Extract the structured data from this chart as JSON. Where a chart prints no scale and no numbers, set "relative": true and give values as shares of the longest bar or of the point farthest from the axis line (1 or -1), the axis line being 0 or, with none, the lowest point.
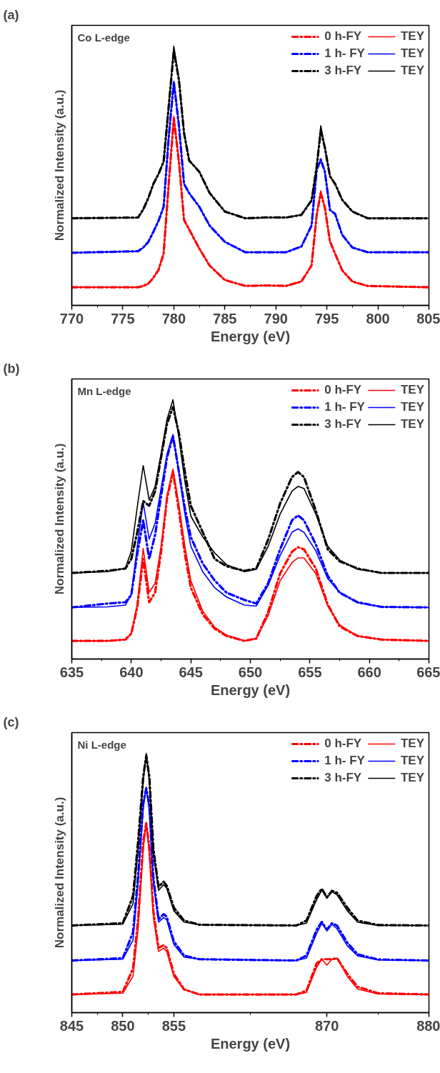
{
  "chart_data": [
    {
      "type": "line",
      "title": "(a)",
      "annotations": [
        "Co L-edge"
      ],
      "xlabel": "Energy (eV)",
      "ylabel": "Normalized Intensity (a.u.)",
      "xlim": [
        770,
        805
      ],
      "xticks": [
        770,
        775,
        780,
        785,
        790,
        795,
        800,
        805
      ],
      "relative": true,
      "tick_labels": "x",
      "legend": "top right",
      "x": [
        770,
        776.5,
        777,
        777.5,
        778,
        778.5,
        779,
        779.5,
        780,
        780.5,
        781,
        781.5,
        782.5,
        783.5,
        785,
        787,
        789,
        791,
        792.5,
        793.5,
        794,
        794.4,
        794.8,
        795.3,
        795.8,
        796.5,
        797.5,
        799,
        805
      ],
      "series": [
        {
          "name": "0 h-FY",
          "color": "#ff0000",
          "line_style": "dashed",
          "values": [
            0.07,
            0.07,
            0.075,
            0.084,
            0.107,
            0.137,
            0.2,
            0.47,
            0.721,
            0.554,
            0.33,
            0.293,
            0.219,
            0.154,
            0.098,
            0.075,
            0.077,
            0.075,
            0.092,
            0.154,
            0.349,
            0.433,
            0.377,
            0.247,
            0.2,
            0.135,
            0.092,
            0.075,
            0.07
          ]
        },
        {
          "name": "TEY",
          "color": "#ff0000",
          "line_style": "solid",
          "values": [
            0.07,
            0.07,
            0.075,
            0.084,
            0.107,
            0.137,
            0.2,
            0.47,
            0.73,
            0.554,
            0.33,
            0.293,
            0.219,
            0.154,
            0.098,
            0.075,
            0.077,
            0.075,
            0.092,
            0.154,
            0.349,
            0.442,
            0.377,
            0.247,
            0.2,
            0.135,
            0.092,
            0.075,
            0.07
          ]
        },
        {
          "name": "1 h- FY",
          "color": "#0000ff",
          "line_style": "dashed",
          "values": [
            0.203,
            0.209,
            0.223,
            0.245,
            0.284,
            0.326,
            0.38,
            0.648,
            0.861,
            0.693,
            0.469,
            0.433,
            0.38,
            0.308,
            0.245,
            0.205,
            0.205,
            0.205,
            0.227,
            0.308,
            0.523,
            0.563,
            0.516,
            0.368,
            0.353,
            0.272,
            0.223,
            0.205,
            0.205
          ]
        },
        {
          "name": "TEY",
          "color": "#0000ff",
          "line_style": "solid",
          "values": [
            0.203,
            0.209,
            0.223,
            0.245,
            0.284,
            0.326,
            0.38,
            0.648,
            0.865,
            0.693,
            0.469,
            0.433,
            0.38,
            0.308,
            0.245,
            0.205,
            0.205,
            0.205,
            0.227,
            0.308,
            0.523,
            0.563,
            0.516,
            0.368,
            0.353,
            0.272,
            0.223,
            0.205,
            0.205
          ]
        },
        {
          "name": "3 h-FY",
          "color": "#000000",
          "line_style": "dashed",
          "values": [
            0.336,
            0.339,
            0.37,
            0.414,
            0.469,
            0.507,
            0.554,
            0.768,
            0.981,
            0.87,
            0.665,
            0.559,
            0.515,
            0.434,
            0.362,
            0.336,
            0.339,
            0.339,
            0.349,
            0.405,
            0.535,
            0.675,
            0.609,
            0.498,
            0.469,
            0.407,
            0.362,
            0.336,
            0.336
          ]
        },
        {
          "name": "TEY",
          "color": "#000000",
          "line_style": "solid",
          "values": [
            0.336,
            0.339,
            0.37,
            0.414,
            0.469,
            0.507,
            0.554,
            0.768,
            1,
            0.87,
            0.665,
            0.559,
            0.515,
            0.434,
            0.362,
            0.336,
            0.339,
            0.339,
            0.349,
            0.405,
            0.535,
            0.693,
            0.609,
            0.498,
            0.469,
            0.407,
            0.362,
            0.336,
            0.336
          ]
        }
      ]
    },
    {
      "type": "line",
      "title": "(b)",
      "annotations": [
        "Mn L-edge"
      ],
      "xlabel": "Energy (eV)",
      "ylabel": "Normalized Intensity (a.u.)",
      "xlim": [
        635,
        665
      ],
      "xticks": [
        635,
        640,
        645,
        650,
        655,
        660,
        665
      ],
      "relative": true,
      "tick_labels": "x",
      "legend": "top right",
      "x": [
        635,
        638,
        639.5,
        640,
        640.5,
        641,
        641.5,
        642,
        642.5,
        643,
        643.5,
        644,
        644.5,
        645,
        646,
        647,
        648,
        649.5,
        650.5,
        651.5,
        652.5,
        653.5,
        654,
        654.5,
        655.5,
        656.5,
        657.5,
        659,
        661,
        665
      ],
      "series": [
        {
          "name": "0 h-FY",
          "color": "#ff0000",
          "line_style": "dashed",
          "values": [
            0.07,
            0.07,
            0.075,
            0.098,
            0.2,
            0.386,
            0.219,
            0.256,
            0.414,
            0.619,
            0.721,
            0.572,
            0.405,
            0.275,
            0.172,
            0.117,
            0.089,
            0.07,
            0.079,
            0.182,
            0.33,
            0.414,
            0.431,
            0.423,
            0.349,
            0.21,
            0.126,
            0.089,
            0.075,
            0.07
          ]
        },
        {
          "name": "TEY",
          "color": "#ff0000",
          "line_style": "solid",
          "values": [
            0.07,
            0.07,
            0.075,
            0.097,
            0.212,
            0.426,
            0.257,
            0.292,
            0.435,
            0.631,
            0.733,
            0.595,
            0.435,
            0.302,
            0.185,
            0.123,
            0.092,
            0.07,
            0.079,
            0.168,
            0.302,
            0.372,
            0.39,
            0.39,
            0.329,
            0.204,
            0.132,
            0.088,
            0.075,
            0.07
          ]
        },
        {
          "name": "1 h- FY",
          "color": "#0000ff",
          "line_style": "dashed",
          "values": [
            0.199,
            0.214,
            0.219,
            0.247,
            0.405,
            0.535,
            0.386,
            0.479,
            0.628,
            0.777,
            0.861,
            0.721,
            0.582,
            0.47,
            0.368,
            0.303,
            0.256,
            0.228,
            0.214,
            0.293,
            0.423,
            0.535,
            0.554,
            0.535,
            0.442,
            0.321,
            0.256,
            0.219,
            0.201,
            0.199
          ]
        },
        {
          "name": "TEY",
          "color": "#0000ff",
          "line_style": "solid",
          "values": [
            0.199,
            0.201,
            0.208,
            0.248,
            0.435,
            0.604,
            0.462,
            0.524,
            0.658,
            0.791,
            0.866,
            0.72,
            0.559,
            0.435,
            0.337,
            0.275,
            0.239,
            0.208,
            0.204,
            0.284,
            0.399,
            0.489,
            0.502,
            0.489,
            0.417,
            0.31,
            0.257,
            0.217,
            0.201,
            0.199
          ]
        },
        {
          "name": "3 h-FY",
          "color": "#000000",
          "line_style": "dashed",
          "values": [
            0.332,
            0.34,
            0.349,
            0.386,
            0.489,
            0.609,
            0.591,
            0.647,
            0.777,
            0.907,
            0.972,
            0.87,
            0.721,
            0.591,
            0.489,
            0.386,
            0.358,
            0.34,
            0.349,
            0.461,
            0.6,
            0.702,
            0.721,
            0.702,
            0.572,
            0.423,
            0.377,
            0.349,
            0.332,
            0.332
          ]
        },
        {
          "name": "TEY",
          "color": "#000000",
          "line_style": "solid",
          "values": [
            0.332,
            0.337,
            0.35,
            0.417,
            0.586,
            0.746,
            0.613,
            0.666,
            0.791,
            0.925,
            1,
            0.853,
            0.684,
            0.551,
            0.471,
            0.409,
            0.364,
            0.337,
            0.346,
            0.435,
            0.559,
            0.648,
            0.666,
            0.658,
            0.559,
            0.435,
            0.382,
            0.346,
            0.332,
            0.332
          ]
        }
      ]
    },
    {
      "type": "line",
      "title": "(c)",
      "annotations": [
        "Ni L-edge"
      ],
      "xlabel": "Energy (eV)",
      "ylabel": "Normalized Intensity (a.u.)",
      "xlim": [
        845,
        880
      ],
      "xticks": [
        845,
        850,
        855,
        870,
        880
      ],
      "relative": true,
      "tick_labels": "x",
      "legend": "top right",
      "x": [
        845,
        850,
        851,
        851.5,
        852,
        852.3,
        852.6,
        853,
        853.5,
        854,
        854.3,
        855,
        856,
        857.5,
        867,
        868,
        869,
        869.5,
        870,
        870.5,
        871,
        872,
        873,
        875,
        880
      ],
      "series": [
        {
          "name": "0 h-FY",
          "color": "#ff0000",
          "line_style": "dashed",
          "values": [
            0.07,
            0.08,
            0.17,
            0.36,
            0.66,
            0.73,
            0.64,
            0.39,
            0.25,
            0.26,
            0.25,
            0.15,
            0.09,
            0.07,
            0.07,
            0.085,
            0.19,
            0.206,
            0.206,
            0.206,
            0.21,
            0.15,
            0.1,
            0.075,
            0.07
          ]
        },
        {
          "name": "TEY",
          "color": "#ff0000",
          "line_style": "solid",
          "values": [
            0.07,
            0.075,
            0.14,
            0.323,
            0.629,
            0.734,
            0.611,
            0.367,
            0.236,
            0.249,
            0.236,
            0.14,
            0.088,
            0.07,
            0.07,
            0.078,
            0.175,
            0.206,
            0.183,
            0.206,
            0.21,
            0.14,
            0.091,
            0.072,
            0.07
          ]
        },
        {
          "name": "1 h- FY",
          "color": "#0000ff",
          "line_style": "dashed",
          "values": [
            0.201,
            0.21,
            0.31,
            0.53,
            0.81,
            0.865,
            0.8,
            0.52,
            0.36,
            0.38,
            0.37,
            0.275,
            0.22,
            0.206,
            0.201,
            0.22,
            0.32,
            0.35,
            0.32,
            0.345,
            0.335,
            0.27,
            0.225,
            0.205,
            0.201
          ]
        },
        {
          "name": "TEY",
          "color": "#0000ff",
          "line_style": "solid",
          "values": [
            0.201,
            0.206,
            0.279,
            0.498,
            0.786,
            0.869,
            0.778,
            0.498,
            0.349,
            0.367,
            0.358,
            0.263,
            0.214,
            0.206,
            0.201,
            0.21,
            0.306,
            0.345,
            0.315,
            0.341,
            0.323,
            0.258,
            0.219,
            0.203,
            0.201
          ]
        },
        {
          "name": "3 h-FY",
          "color": "#000000",
          "line_style": "dashed",
          "values": [
            0.336,
            0.345,
            0.45,
            0.66,
            0.91,
            0.991,
            0.91,
            0.63,
            0.485,
            0.505,
            0.49,
            0.405,
            0.355,
            0.339,
            0.336,
            0.355,
            0.45,
            0.478,
            0.445,
            0.47,
            0.462,
            0.405,
            0.355,
            0.338,
            0.336
          ]
        },
        {
          "name": "TEY",
          "color": "#000000",
          "line_style": "solid",
          "values": [
            0.336,
            0.341,
            0.42,
            0.629,
            0.891,
            1,
            0.891,
            0.611,
            0.472,
            0.493,
            0.48,
            0.393,
            0.349,
            0.339,
            0.336,
            0.345,
            0.436,
            0.472,
            0.441,
            0.467,
            0.454,
            0.393,
            0.349,
            0.336,
            0.336
          ]
        }
      ]
    }
  ]
}
